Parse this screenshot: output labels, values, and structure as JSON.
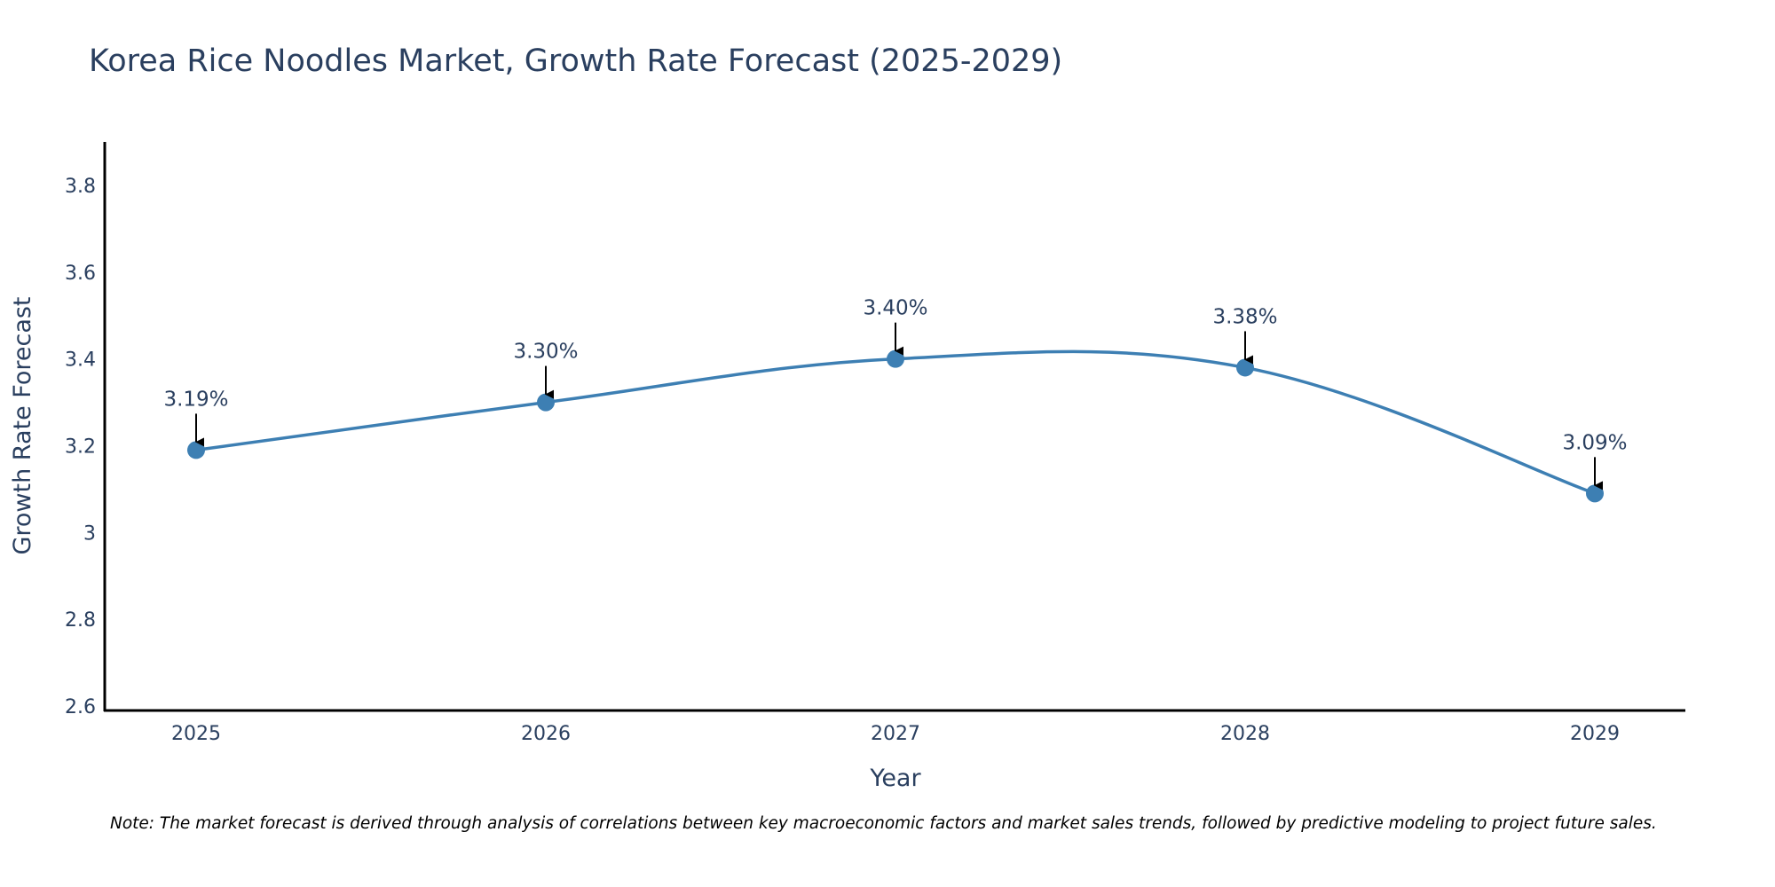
{
  "chart_data": {
    "type": "line",
    "title": "Korea Rice Noodles Market, Growth Rate Forecast (2025-2029)",
    "xlabel": "Year",
    "ylabel": "Growth Rate Forecast",
    "categories": [
      "2025",
      "2026",
      "2027",
      "2028",
      "2029"
    ],
    "series": [
      {
        "name": "Growth Rate Forecast",
        "values": [
          3.19,
          3.3,
          3.4,
          3.38,
          3.09
        ],
        "labels": [
          "3.19%",
          "3.30%",
          "3.40%",
          "3.38%",
          "3.09%"
        ],
        "color": "#3d7fb3"
      }
    ],
    "ylim": [
      2.59,
      3.9
    ],
    "yticks": [
      2.6,
      2.8,
      3,
      3.2,
      3.4,
      3.6,
      3.8
    ],
    "ytick_labels": [
      "2.6",
      "2.8",
      "3",
      "3.2",
      "3.4",
      "3.6",
      "3.8"
    ],
    "grid": false,
    "line_shape": "spline"
  },
  "note": "Note: The market forecast is derived through analysis of correlations between key macroeconomic factors and market sales trends, followed by predictive modeling to project future sales."
}
